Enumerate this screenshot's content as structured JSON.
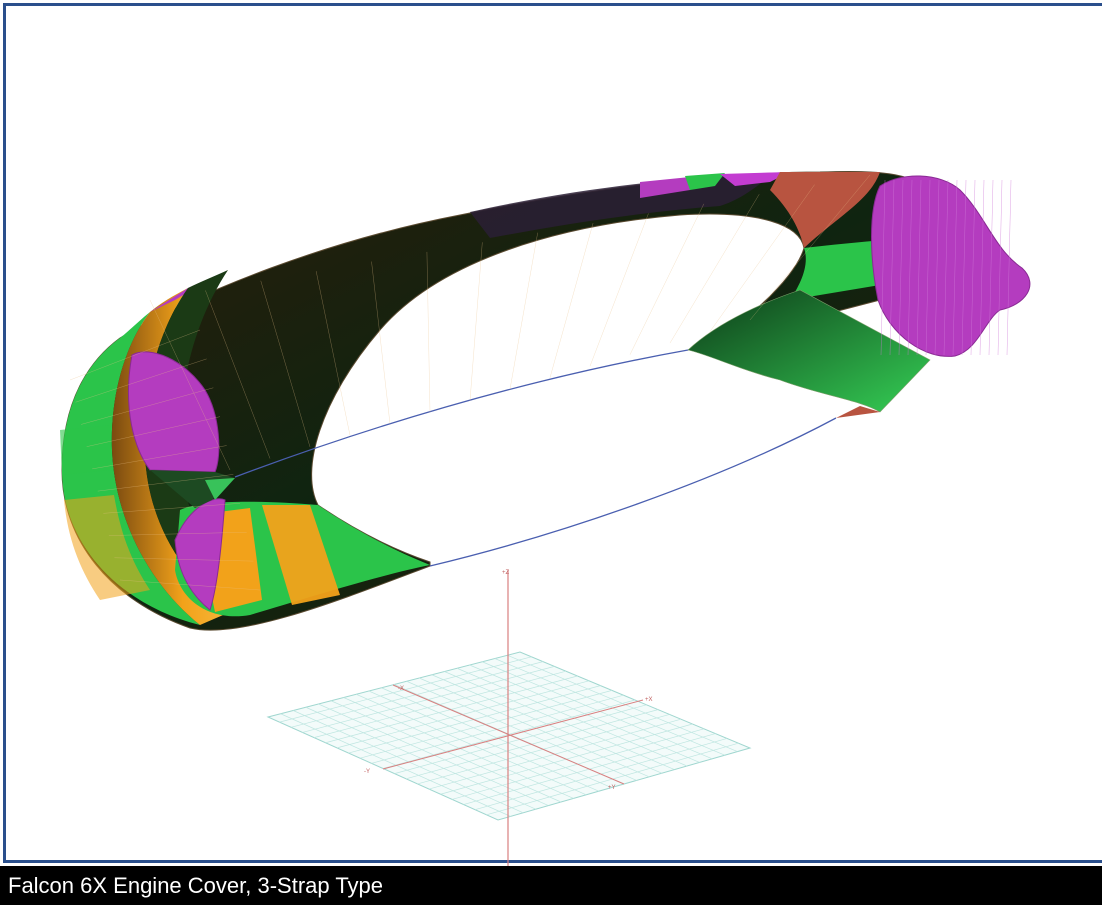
{
  "caption": "Falcon 6X Engine Cover, 3-Strap Type",
  "colors": {
    "frame": "#2a4f8c",
    "caption_bg": "#000000",
    "caption_text": "#ffffff",
    "green": "#2bc44a",
    "orange": "#f2a21a",
    "magenta": "#b43cbf",
    "brick": "#b85440",
    "dark": "#1a1a10",
    "strap_line": "#4a5fb0",
    "grid": "#9fd6cf",
    "axis": "#d98080"
  },
  "axis_labels": {
    "z": "+Z",
    "x_pos": "+X",
    "x_neg": "-X",
    "y_pos": "+Y",
    "y_neg": "-Y"
  }
}
